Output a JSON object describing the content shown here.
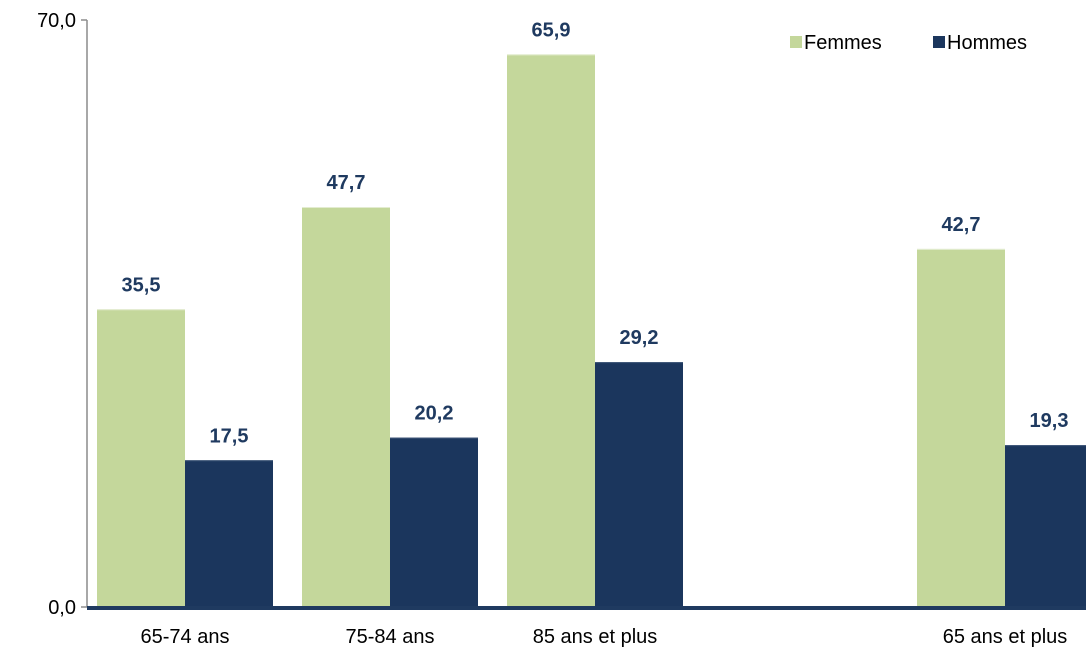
{
  "chart_data": {
    "type": "bar",
    "categories": [
      "65-74 ans",
      "75-84 ans",
      "85 ans et plus",
      "",
      "65 ans et plus"
    ],
    "series": [
      {
        "name": "Femmes",
        "values": [
          35.5,
          47.7,
          65.9,
          null,
          42.7
        ],
        "color": "#c4d79b"
      },
      {
        "name": "Hommes",
        "values": [
          17.5,
          20.2,
          29.2,
          null,
          19.3
        ],
        "color": "#1b365d"
      }
    ],
    "value_labels": {
      "Femmes": [
        "35,5",
        "47,7",
        "65,9",
        "",
        "42,7"
      ],
      "Hommes": [
        "17,5",
        "20,2",
        "29,2",
        "",
        "19,3"
      ]
    },
    "ylim": [
      0,
      70
    ],
    "yticks": [
      "0,0",
      "70,0"
    ],
    "title": "",
    "xlabel": "",
    "ylabel": "",
    "grid": false,
    "legend_position": "top-right",
    "axis_color": "#1f3a60",
    "value_label_color": "#1f3a60"
  }
}
